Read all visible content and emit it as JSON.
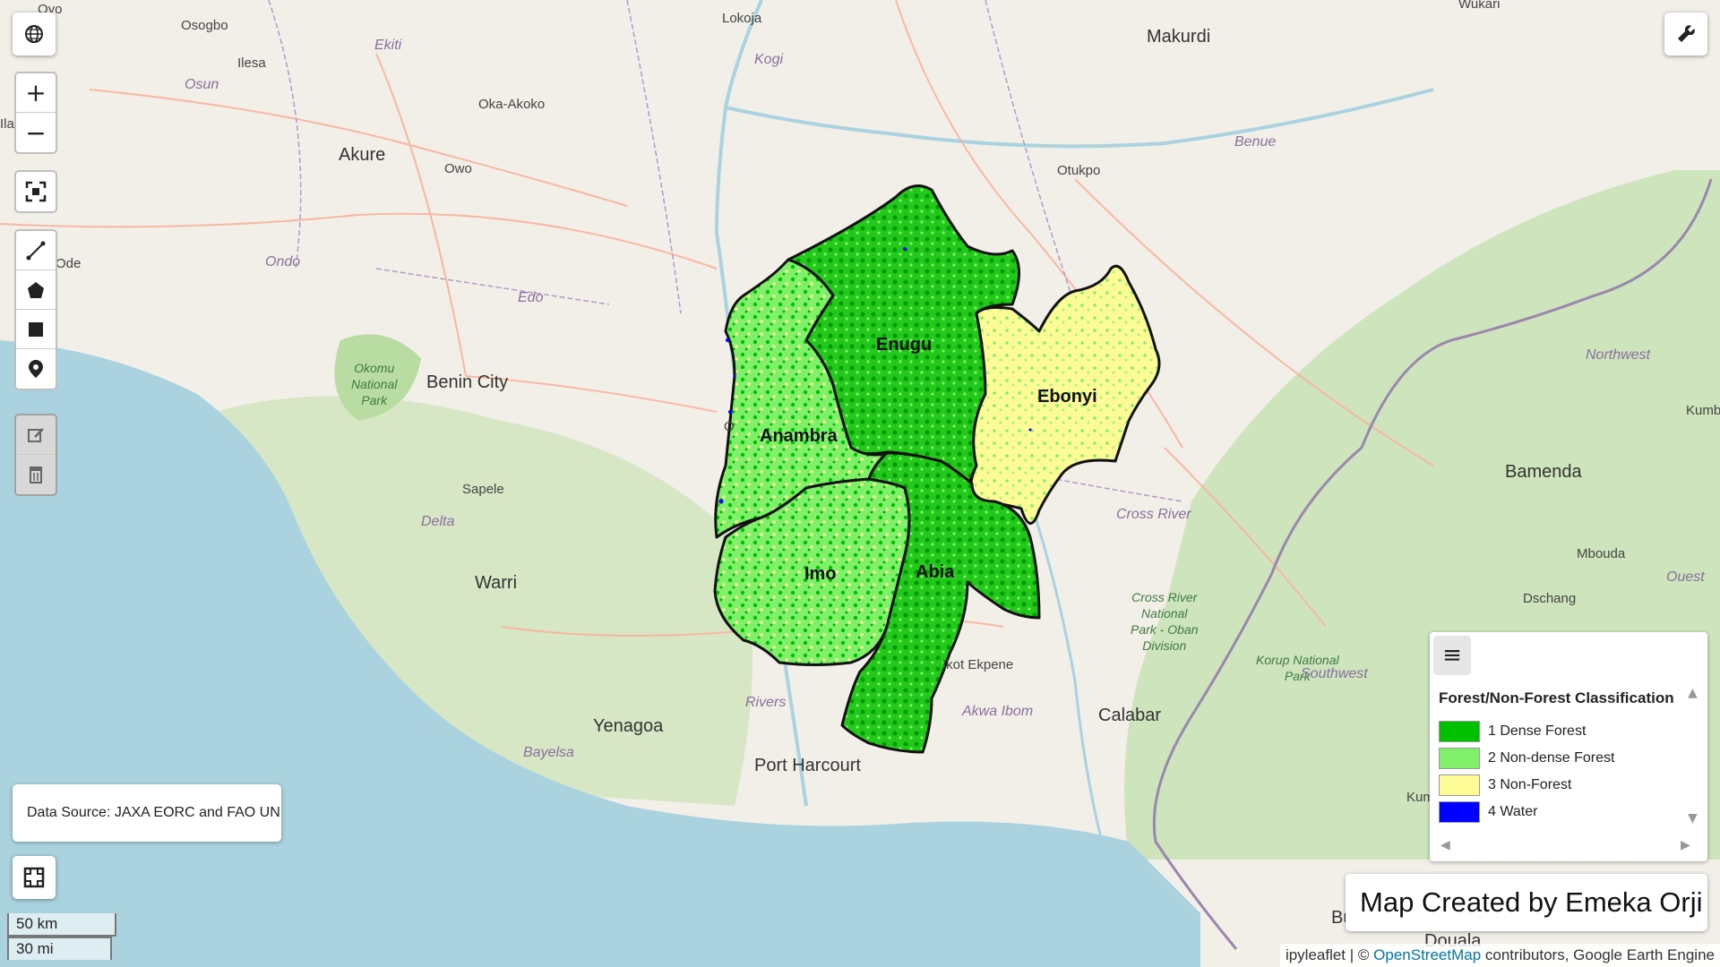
{
  "map": {
    "places": {
      "oyo": "Oyo",
      "osogbo": "Osogbo",
      "ilesa": "Ilesa",
      "osun": "Osun",
      "ekiti": "Ekiti",
      "lokoja": "Lokoja",
      "kogi": "Kogi",
      "makurdi": "Makurdi",
      "wukari": "Wukari",
      "oka_akoko": "Oka-Akoko",
      "akure": "Akure",
      "owo": "Owo",
      "benue": "Benue",
      "otukpo": "Otukpo",
      "ondo": "Ondo",
      "ondo_town": "Ode",
      "edo": "Edo",
      "benin_city": "Benin City",
      "okomu": "Okomu\nNational\nPark",
      "sapele": "Sapele",
      "delta": "Delta",
      "warri": "Warri",
      "yenagoa": "Yenagoa",
      "bayelsa": "Bayelsa",
      "rivers": "Rivers",
      "port_harcourt": "Port Harcourt",
      "ikot_ekpene": "Ikot Ekpene",
      "akwa_ibom": "Akwa Ibom",
      "calabar": "Calabar",
      "cross_river": "Cross River",
      "cross_river_park": "Cross River\nNational\nPark - Oban\nDivision",
      "korup": "Korup National\nPark",
      "southwest": "Southwest",
      "northwest": "Northwest",
      "bamenda": "Bamenda",
      "mbouda": "Mbouda",
      "dschang": "Dschang",
      "ouest": "Ouest",
      "kumba": "Kumba",
      "kumb_right": "Kumb",
      "ilan": "Ilan",
      "onitsha": "O",
      "douala": "Douala",
      "bu": "Bu"
    },
    "regions": {
      "enugu": "Enugu",
      "ebonyi": "Ebonyi",
      "anambra": "Anambra",
      "imo": "Imo",
      "abia": "Abia"
    },
    "colors": {
      "dense_forest": "#00c000",
      "non_dense_forest": "#80f06a",
      "non_forest": "#fcfb96",
      "water": "#0000ff",
      "sea": "#aad3df",
      "land": "#f2efe9",
      "vegetation": "#c8e2b4"
    }
  },
  "controls": {
    "globe_icon": "globe-icon",
    "zoom_in": "+",
    "zoom_out": "−",
    "tools_icon": "wrench-icon"
  },
  "legend": {
    "title": "Forest/Non-Forest Classification",
    "items": [
      {
        "label": "1 Dense Forest",
        "color": "#00c000"
      },
      {
        "label": "2 Non-dense Forest",
        "color": "#80f06a"
      },
      {
        "label": "3 Non-Forest",
        "color": "#fcfb96"
      },
      {
        "label": "4 Water",
        "color": "#0000ff"
      }
    ]
  },
  "data_source": "Data Source: JAXA EORC and FAO UN",
  "credit": "Map Created by Emeka Orji",
  "scale": {
    "metric": "50 km",
    "imperial": "30 mi"
  },
  "attribution": {
    "prefix": "ipyleaflet | © ",
    "link": "OpenStreetMap",
    "suffix": " contributors, Google Earth Engine"
  }
}
